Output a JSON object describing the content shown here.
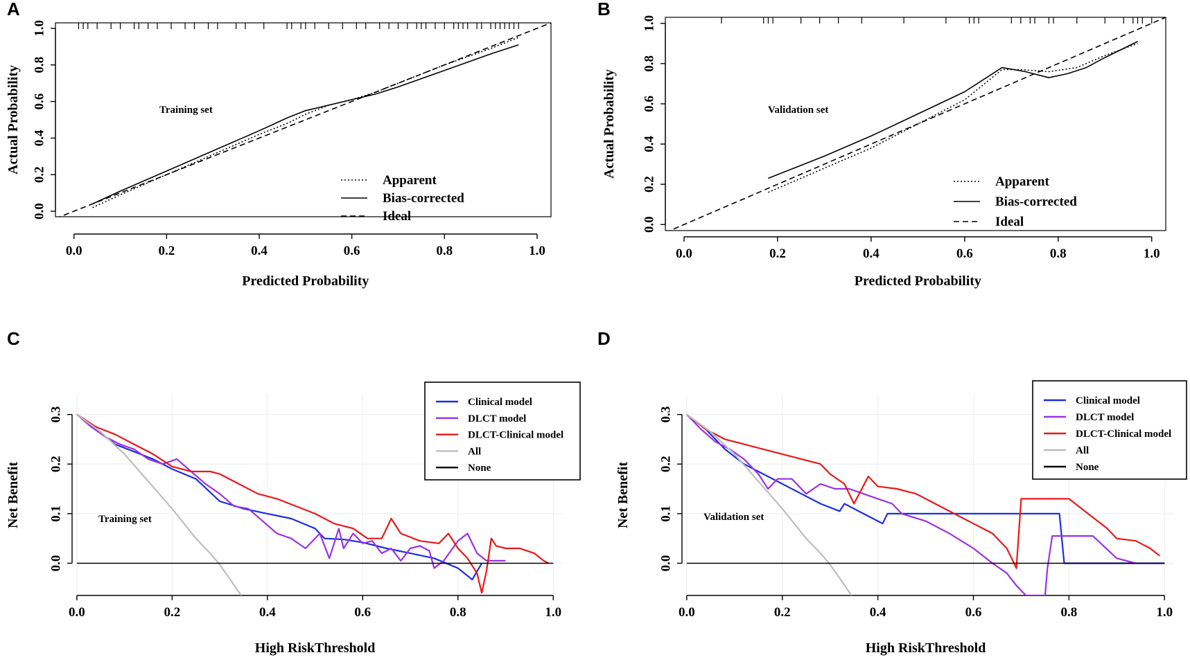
{
  "chart_data": [
    {
      "panel": "A",
      "type": "line",
      "set_label": "Training set",
      "xlabel": "Predicted Probability",
      "ylabel": "Actual Probability",
      "xlim": [
        -0.04,
        1.03
      ],
      "ylim": [
        -0.03,
        1.03
      ],
      "xticks": [
        "0.0",
        "0.2",
        "0.4",
        "0.6",
        "0.8",
        "1.0"
      ],
      "yticks": [
        "0.0",
        "0.2",
        "0.4",
        "0.6",
        "0.8",
        "1.0"
      ],
      "legend": [
        "Apparent",
        "Bias-corrected",
        "Ideal"
      ],
      "rug": [
        0.01,
        0.02,
        0.03,
        0.05,
        0.08,
        0.1,
        0.13,
        0.14,
        0.16,
        0.18,
        0.21,
        0.24,
        0.26,
        0.29,
        0.31,
        0.35,
        0.37,
        0.41,
        0.46,
        0.47,
        0.49,
        0.5,
        0.52,
        0.55,
        0.58,
        0.61,
        0.63,
        0.66,
        0.68,
        0.7,
        0.72,
        0.74,
        0.75,
        0.76,
        0.78,
        0.8,
        0.82,
        0.83,
        0.84,
        0.85,
        0.87,
        0.88,
        0.9,
        0.91,
        0.92,
        0.93,
        0.94,
        0.95,
        0.96
      ],
      "series": [
        {
          "name": "Apparent",
          "style": "dotted",
          "x": [
            0.04,
            0.1,
            0.2,
            0.3,
            0.4,
            0.46,
            0.5,
            0.55,
            0.6,
            0.65,
            0.7,
            0.8,
            0.9,
            0.96
          ],
          "y": [
            0.02,
            0.09,
            0.2,
            0.31,
            0.42,
            0.48,
            0.53,
            0.58,
            0.61,
            0.65,
            0.7,
            0.8,
            0.89,
            0.95
          ]
        },
        {
          "name": "Bias-corrected",
          "style": "solid",
          "x": [
            0.04,
            0.1,
            0.2,
            0.3,
            0.4,
            0.46,
            0.5,
            0.55,
            0.6,
            0.65,
            0.7,
            0.8,
            0.9,
            0.96
          ],
          "y": [
            0.04,
            0.11,
            0.22,
            0.33,
            0.44,
            0.51,
            0.55,
            0.58,
            0.61,
            0.64,
            0.68,
            0.77,
            0.86,
            0.91
          ]
        },
        {
          "name": "Ideal",
          "style": "dashed",
          "x": [
            -0.04,
            1.03
          ],
          "y": [
            -0.04,
            1.03
          ]
        }
      ]
    },
    {
      "panel": "B",
      "type": "line",
      "set_label": "Validation set",
      "xlabel": "Predicted Probability",
      "ylabel": "Actual Probability",
      "xlim": [
        -0.04,
        1.03
      ],
      "ylim": [
        -0.03,
        1.03
      ],
      "xticks": [
        "0.0",
        "0.2",
        "0.4",
        "0.6",
        "0.8",
        "1.0"
      ],
      "yticks": [
        "0.0",
        "0.2",
        "0.4",
        "0.6",
        "0.8",
        "1.0"
      ],
      "legend": [
        "Apparent",
        "Bias-corrected",
        "Ideal"
      ],
      "rug": [
        0.08,
        0.17,
        0.18,
        0.19,
        0.25,
        0.29,
        0.33,
        0.38,
        0.47,
        0.56,
        0.61,
        0.62,
        0.63,
        0.7,
        0.72,
        0.74,
        0.75,
        0.78,
        0.79,
        0.84,
        0.9,
        0.94,
        0.96,
        0.97,
        0.98,
        1.0
      ],
      "series": [
        {
          "name": "Apparent",
          "style": "dotted",
          "x": [
            0.18,
            0.3,
            0.4,
            0.5,
            0.6,
            0.68,
            0.72,
            0.78,
            0.84,
            0.9,
            0.97
          ],
          "y": [
            0.16,
            0.28,
            0.38,
            0.5,
            0.62,
            0.77,
            0.77,
            0.76,
            0.78,
            0.84,
            0.9
          ]
        },
        {
          "name": "Bias-corrected",
          "style": "solid",
          "x": [
            0.18,
            0.3,
            0.4,
            0.5,
            0.6,
            0.68,
            0.73,
            0.78,
            0.82,
            0.86,
            0.9,
            0.97
          ],
          "y": [
            0.23,
            0.34,
            0.44,
            0.55,
            0.66,
            0.78,
            0.76,
            0.73,
            0.75,
            0.78,
            0.83,
            0.91
          ]
        },
        {
          "name": "Ideal",
          "style": "dashed",
          "x": [
            -0.04,
            1.03
          ],
          "y": [
            -0.04,
            1.03
          ]
        }
      ]
    },
    {
      "panel": "C",
      "type": "line",
      "set_label": "Training set",
      "xlabel": "High RiskThreshold",
      "ylabel": "Net Benefit",
      "xlim": [
        -0.01,
        1.02
      ],
      "ylim": [
        -0.065,
        0.34
      ],
      "xticks": [
        "0.0",
        "0.2",
        "0.4",
        "0.6",
        "0.8",
        "1.0"
      ],
      "yticks": [
        "0.0",
        "0.1",
        "0.2",
        "0.3"
      ],
      "legend": [
        "Clinical model",
        "DLCT model",
        "DLCT-Clinical model",
        "All",
        "None"
      ],
      "series": [
        {
          "name": "Clinical model",
          "color": "#1a2fe0",
          "x": [
            0,
            0.04,
            0.08,
            0.12,
            0.16,
            0.2,
            0.25,
            0.3,
            0.35,
            0.4,
            0.45,
            0.5,
            0.52,
            0.56,
            0.6,
            0.65,
            0.7,
            0.75,
            0.8,
            0.83,
            0.85
          ],
          "y": [
            0.3,
            0.27,
            0.24,
            0.225,
            0.21,
            0.19,
            0.17,
            0.125,
            0.11,
            0.1,
            0.09,
            0.07,
            0.05,
            0.048,
            0.042,
            0.03,
            0.02,
            0.01,
            -0.01,
            -0.033,
            0.0
          ]
        },
        {
          "name": "DLCT model",
          "color": "#9b30e8",
          "x": [
            0,
            0.03,
            0.06,
            0.09,
            0.12,
            0.15,
            0.18,
            0.21,
            0.24,
            0.27,
            0.3,
            0.33,
            0.36,
            0.39,
            0.42,
            0.45,
            0.48,
            0.51,
            0.53,
            0.55,
            0.56,
            0.58,
            0.6,
            0.62,
            0.64,
            0.66,
            0.68,
            0.7,
            0.72,
            0.74,
            0.75,
            0.77,
            0.8,
            0.82,
            0.84,
            0.86,
            0.9
          ],
          "y": [
            0.3,
            0.275,
            0.255,
            0.24,
            0.23,
            0.21,
            0.2,
            0.21,
            0.185,
            0.16,
            0.14,
            0.115,
            0.11,
            0.085,
            0.06,
            0.05,
            0.03,
            0.06,
            0.01,
            0.07,
            0.03,
            0.06,
            0.04,
            0.045,
            0.02,
            0.03,
            0.005,
            0.03,
            0.035,
            0.025,
            -0.01,
            0.005,
            0.045,
            0.06,
            0.02,
            0.005,
            0.005
          ]
        },
        {
          "name": "DLCT-Clinical model",
          "color": "#e81818",
          "x": [
            0,
            0.04,
            0.08,
            0.12,
            0.16,
            0.2,
            0.24,
            0.28,
            0.3,
            0.34,
            0.38,
            0.42,
            0.46,
            0.5,
            0.54,
            0.58,
            0.61,
            0.64,
            0.66,
            0.68,
            0.72,
            0.76,
            0.78,
            0.8,
            0.82,
            0.84,
            0.85,
            0.86,
            0.87,
            0.88,
            0.9,
            0.93,
            0.96,
            0.98,
            0.99
          ],
          "y": [
            0.3,
            0.275,
            0.26,
            0.24,
            0.22,
            0.195,
            0.185,
            0.185,
            0.18,
            0.16,
            0.14,
            0.13,
            0.115,
            0.1,
            0.08,
            0.07,
            0.05,
            0.05,
            0.09,
            0.06,
            0.045,
            0.04,
            0.06,
            0.03,
            0.01,
            -0.02,
            -0.06,
            -0.015,
            0.05,
            0.035,
            0.03,
            0.03,
            0.02,
            0.005,
            0.0
          ]
        },
        {
          "name": "All",
          "color": "#bdbdbd",
          "x": [
            0,
            0.05,
            0.1,
            0.15,
            0.2,
            0.25,
            0.28,
            0.3,
            0.32,
            0.345
          ],
          "y": [
            0.3,
            0.265,
            0.22,
            0.165,
            0.11,
            0.05,
            0.02,
            -0.003,
            -0.03,
            -0.065
          ]
        },
        {
          "name": "None",
          "color": "#000000",
          "x": [
            0,
            1
          ],
          "y": [
            0,
            0
          ]
        }
      ]
    },
    {
      "panel": "D",
      "type": "line",
      "set_label": "Validation set",
      "xlabel": "High RiskThreshold",
      "ylabel": "Net Benefit",
      "xlim": [
        -0.01,
        1.02
      ],
      "ylim": [
        -0.065,
        0.34
      ],
      "xticks": [
        "0.0",
        "0.2",
        "0.4",
        "0.6",
        "0.8",
        "1.0"
      ],
      "yticks": [
        "0.0",
        "0.1",
        "0.2",
        "0.3"
      ],
      "legend": [
        "Clinical model",
        "DLCT model",
        "DLCT-Clinical model",
        "All",
        "None"
      ],
      "series": [
        {
          "name": "Clinical model",
          "color": "#1a2fe0",
          "x": [
            0,
            0.04,
            0.08,
            0.12,
            0.16,
            0.2,
            0.24,
            0.28,
            0.32,
            0.33,
            0.37,
            0.41,
            0.42,
            0.43,
            0.5,
            0.6,
            0.7,
            0.77,
            0.78,
            0.79,
            1.0
          ],
          "y": [
            0.3,
            0.27,
            0.23,
            0.2,
            0.18,
            0.16,
            0.14,
            0.12,
            0.105,
            0.12,
            0.1,
            0.08,
            0.1,
            0.1,
            0.1,
            0.1,
            0.1,
            0.1,
            0.1,
            0.0,
            0.0
          ]
        },
        {
          "name": "DLCT model",
          "color": "#9b30e8",
          "x": [
            0,
            0.03,
            0.06,
            0.09,
            0.12,
            0.15,
            0.17,
            0.19,
            0.22,
            0.25,
            0.28,
            0.31,
            0.34,
            0.37,
            0.4,
            0.43,
            0.45,
            0.5,
            0.55,
            0.6,
            0.64,
            0.67,
            0.69,
            0.71,
            0.75,
            0.755,
            0.765,
            0.8,
            0.85,
            0.9,
            0.94
          ],
          "y": [
            0.3,
            0.27,
            0.245,
            0.23,
            0.21,
            0.18,
            0.15,
            0.17,
            0.17,
            0.14,
            0.16,
            0.15,
            0.15,
            0.14,
            0.13,
            0.12,
            0.1,
            0.085,
            0.06,
            0.03,
            0.0,
            -0.02,
            -0.045,
            -0.065,
            -0.065,
            -0.01,
            0.055,
            0.055,
            0.055,
            0.01,
            0.0
          ]
        },
        {
          "name": "DLCT-Clinical model",
          "color": "#e81818",
          "x": [
            0,
            0.04,
            0.08,
            0.12,
            0.16,
            0.2,
            0.24,
            0.28,
            0.3,
            0.33,
            0.35,
            0.38,
            0.4,
            0.44,
            0.48,
            0.52,
            0.56,
            0.6,
            0.64,
            0.67,
            0.69,
            0.7,
            0.75,
            0.8,
            0.84,
            0.88,
            0.9,
            0.94,
            0.97,
            0.99
          ],
          "y": [
            0.3,
            0.27,
            0.25,
            0.24,
            0.23,
            0.22,
            0.21,
            0.2,
            0.18,
            0.16,
            0.12,
            0.175,
            0.155,
            0.15,
            0.14,
            0.12,
            0.1,
            0.08,
            0.06,
            0.03,
            -0.01,
            0.13,
            0.13,
            0.13,
            0.1,
            0.07,
            0.05,
            0.045,
            0.03,
            0.015
          ]
        },
        {
          "name": "All",
          "color": "#bdbdbd",
          "x": [
            0,
            0.05,
            0.1,
            0.15,
            0.2,
            0.25,
            0.28,
            0.3,
            0.32,
            0.345
          ],
          "y": [
            0.3,
            0.265,
            0.22,
            0.165,
            0.11,
            0.05,
            0.02,
            -0.003,
            -0.03,
            -0.065
          ]
        },
        {
          "name": "None",
          "color": "#000000",
          "x": [
            0,
            1
          ],
          "y": [
            0,
            0
          ]
        }
      ]
    }
  ]
}
